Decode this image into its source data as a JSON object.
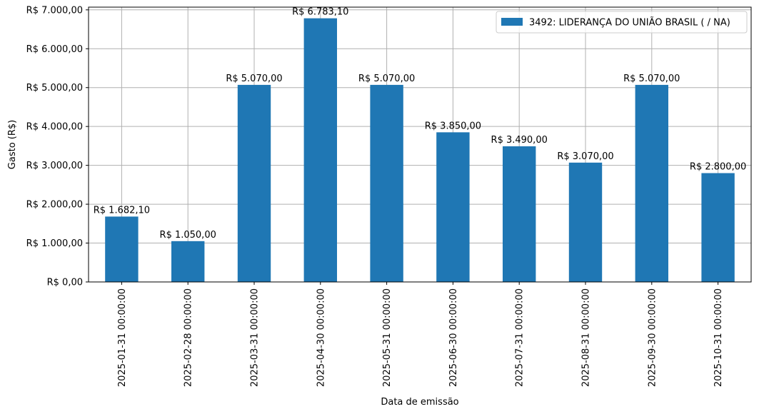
{
  "chart_data": {
    "type": "bar",
    "categories": [
      "2025-01-31 00:00:00",
      "2025-02-28 00:00:00",
      "2025-03-31 00:00:00",
      "2025-04-30 00:00:00",
      "2025-05-31 00:00:00",
      "2025-06-30 00:00:00",
      "2025-07-31 00:00:00",
      "2025-08-31 00:00:00",
      "2025-09-30 00:00:00",
      "2025-10-31 00:00:00"
    ],
    "series": [
      {
        "name": "3492: LIDERANÇA DO UNIÃO BRASIL ( / NA)",
        "values": [
          1682.1,
          1050.0,
          5070.0,
          6783.1,
          5070.0,
          3850.0,
          3490.0,
          3070.0,
          5070.0,
          2800.0
        ],
        "labels": [
          "R$ 1.682,10",
          "R$ 1.050,00",
          "R$ 5.070,00",
          "R$ 6.783,10",
          "R$ 5.070,00",
          "R$ 3.850,00",
          "R$ 3.490,00",
          "R$ 3.070,00",
          "R$ 5.070,00",
          "R$ 2.800,00"
        ],
        "color": "#1f77b4"
      }
    ],
    "xlabel": "Data de emissão",
    "ylabel": "Gasto (R$)",
    "ylim": [
      0,
      7000
    ],
    "yticks": [
      0,
      1000,
      2000,
      3000,
      4000,
      5000,
      6000,
      7000
    ],
    "ytick_labels": [
      "R$ 0,00",
      "R$ 1.000,00",
      "R$ 2.000,00",
      "R$ 3.000,00",
      "R$ 4.000,00",
      "R$ 5.000,00",
      "R$ 6.000,00",
      "R$ 7.000,00"
    ],
    "grid": true,
    "legend_position": "top-right"
  }
}
